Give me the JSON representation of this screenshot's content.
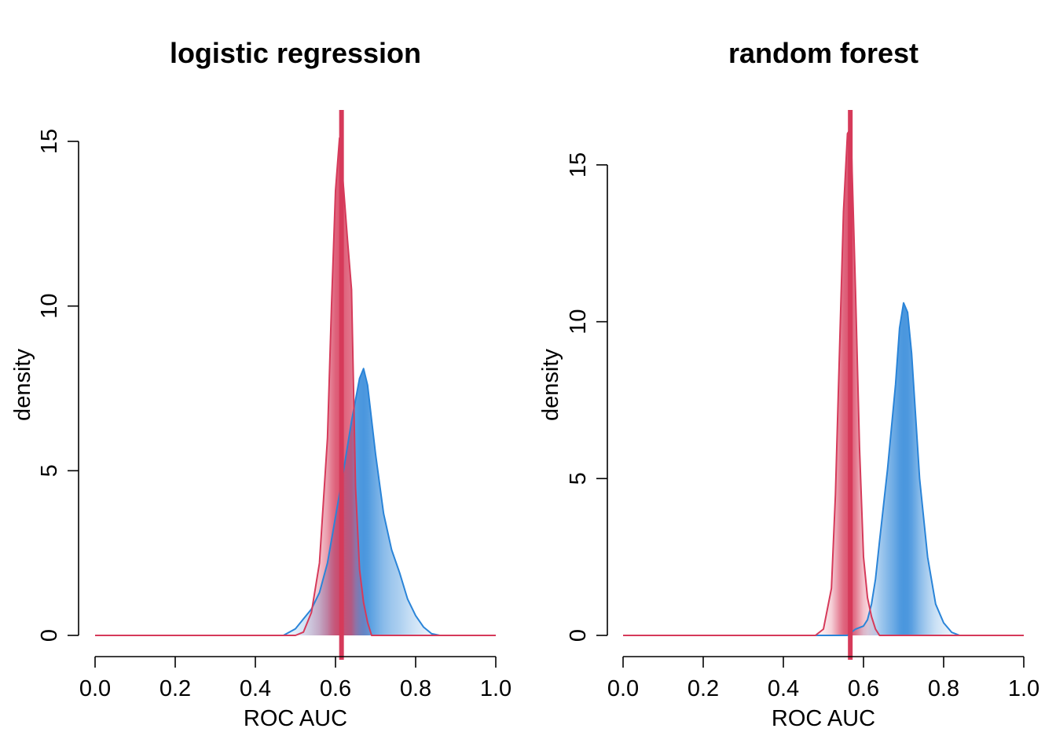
{
  "colors": {
    "blue": "#2a84d8",
    "red": "#d63a5a"
  },
  "chart_data": [
    {
      "type": "area",
      "title": "logistic regression",
      "xlabel": "ROC AUC",
      "ylabel": "density",
      "xlim": [
        0,
        1
      ],
      "ylim": [
        0,
        15
      ],
      "x_ticks": [
        "0.0",
        "0.2",
        "0.4",
        "0.6",
        "0.8",
        "1.0"
      ],
      "y_ticks": [
        "0",
        "5",
        "10",
        "15"
      ],
      "vline": 0.615,
      "series": [
        {
          "color": "blue",
          "x": [
            0,
            0.47,
            0.5,
            0.52,
            0.54,
            0.56,
            0.58,
            0.6,
            0.62,
            0.64,
            0.66,
            0.67,
            0.68,
            0.7,
            0.72,
            0.74,
            0.76,
            0.78,
            0.8,
            0.82,
            0.84,
            0.86,
            1.0
          ],
          "y": [
            0,
            0,
            0.2,
            0.5,
            0.8,
            1.3,
            2.2,
            3.6,
            5.0,
            6.5,
            7.8,
            8.1,
            7.6,
            5.5,
            3.7,
            2.6,
            1.9,
            1.1,
            0.6,
            0.25,
            0.05,
            0,
            0
          ]
        },
        {
          "color": "red",
          "x": [
            0,
            0.5,
            0.52,
            0.54,
            0.56,
            0.58,
            0.59,
            0.6,
            0.61,
            0.62,
            0.63,
            0.64,
            0.65,
            0.66,
            0.67,
            0.68,
            0.69,
            1.0
          ],
          "y": [
            0,
            0,
            0.1,
            0.7,
            2.2,
            6.0,
            10.0,
            13.5,
            15.1,
            13.6,
            12.0,
            10.5,
            4.5,
            2.0,
            1.0,
            0.4,
            0,
            0
          ]
        }
      ]
    },
    {
      "type": "area",
      "title": "random forest",
      "xlabel": "ROC AUC",
      "ylabel": "density",
      "xlim": [
        0,
        1
      ],
      "ylim": [
        0,
        16
      ],
      "x_ticks": [
        "0.0",
        "0.2",
        "0.4",
        "0.6",
        "0.8",
        "1.0"
      ],
      "y_ticks": [
        "0",
        "5",
        "10",
        "15"
      ],
      "vline": 0.567,
      "series": [
        {
          "color": "blue",
          "x": [
            0,
            0.56,
            0.58,
            0.6,
            0.61,
            0.62,
            0.63,
            0.64,
            0.66,
            0.68,
            0.69,
            0.7,
            0.71,
            0.72,
            0.73,
            0.74,
            0.76,
            0.78,
            0.8,
            0.82,
            0.84,
            1.0
          ],
          "y": [
            0,
            0,
            0.2,
            0.3,
            0.5,
            1.0,
            1.8,
            3.0,
            5.3,
            8.0,
            9.8,
            10.6,
            10.3,
            9.0,
            7.0,
            5.0,
            2.5,
            1.0,
            0.4,
            0.1,
            0,
            0
          ]
        },
        {
          "color": "red",
          "x": [
            0,
            0.48,
            0.5,
            0.52,
            0.53,
            0.54,
            0.55,
            0.56,
            0.565,
            0.57,
            0.58,
            0.59,
            0.6,
            0.61,
            0.62,
            0.63,
            0.64,
            1.0
          ],
          "y": [
            0,
            0,
            0.2,
            1.5,
            4.5,
            9.0,
            13.5,
            16.0,
            16.1,
            15.5,
            11.0,
            6.0,
            2.5,
            1.2,
            0.6,
            0.2,
            0,
            0
          ]
        }
      ]
    }
  ]
}
